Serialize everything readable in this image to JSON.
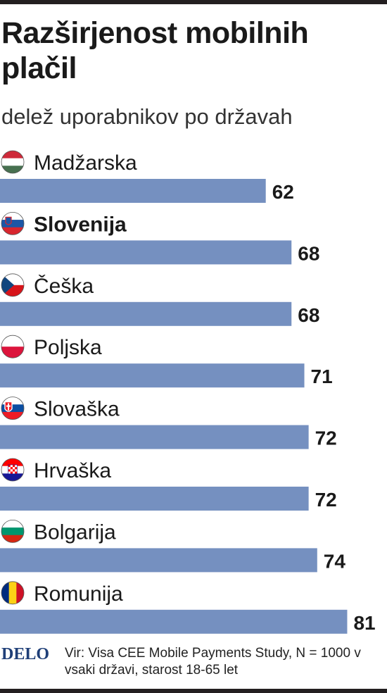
{
  "chart_data": {
    "type": "bar",
    "orientation": "horizontal",
    "title": "Razširjenost mobilnih plačil",
    "subtitle": "delež uporabnikov po državah",
    "categories": [
      "Madžarska",
      "Slovenija",
      "Češka",
      "Poljska",
      "Slovaška",
      "Hrvaška",
      "Bolgarija",
      "Romunija"
    ],
    "values": [
      62,
      68,
      68,
      71,
      72,
      72,
      74,
      81
    ],
    "highlight": "Slovenija",
    "bar_color": "#7590c0",
    "xlim": [
      0,
      87
    ],
    "grid": false,
    "legend": "none"
  },
  "flags": {
    "Madžarska": "hungary-flag-icon",
    "Slovenija": "slovenia-flag-icon",
    "Češka": "czech-flag-icon",
    "Poljska": "poland-flag-icon",
    "Slovaška": "slovakia-flag-icon",
    "Hrvaška": "croatia-flag-icon",
    "Bolgarija": "bulgaria-flag-icon",
    "Romunija": "romania-flag-icon"
  },
  "footer": {
    "logo": "DELO",
    "source": "Vir: Visa CEE Mobile Payments Study, N = 1000 v vsaki državi, starost 18-65 let"
  }
}
